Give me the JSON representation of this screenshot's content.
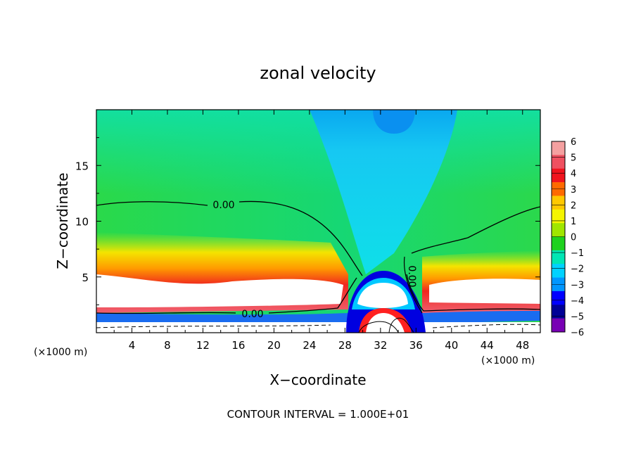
{
  "chart_data": {
    "type": "heatmap",
    "title": "zonal velocity",
    "xlabel": "X−coordinate",
    "ylabel": "Z−coordinate",
    "x_unit_left": "(×1000 m)",
    "x_unit_right": "(×1000 m)",
    "footer": "CONTOUR INTERVAL = 1.000E+01",
    "xlim": [
      0,
      50
    ],
    "ylim": [
      0,
      20
    ],
    "x_ticks": [
      4,
      8,
      12,
      16,
      20,
      24,
      28,
      32,
      36,
      40,
      44,
      48
    ],
    "y_ticks": [
      5,
      10,
      15
    ],
    "grid": false,
    "colorbar": {
      "levels": [
        6,
        5,
        4,
        3,
        2,
        1,
        0,
        -1,
        -2,
        -3,
        -4,
        -5,
        -6
      ],
      "tick_labels": [
        "6",
        "5",
        "4",
        "3",
        "2",
        "1",
        "0",
        "−1",
        "−2",
        "−3",
        "−4",
        "−5",
        "−6"
      ],
      "colors": [
        "#f4a0a0",
        "#ef5060",
        "#f0141e",
        "#ff6a00",
        "#ffc800",
        "#f5f500",
        "#a0e600",
        "#1ed21e",
        "#00e6b4",
        "#00d2ff",
        "#0096ff",
        "#0000ff",
        "#000096",
        "#7800b4"
      ]
    },
    "contour_labels": [
      "0.00",
      "0.00",
      "0.00"
    ]
  }
}
